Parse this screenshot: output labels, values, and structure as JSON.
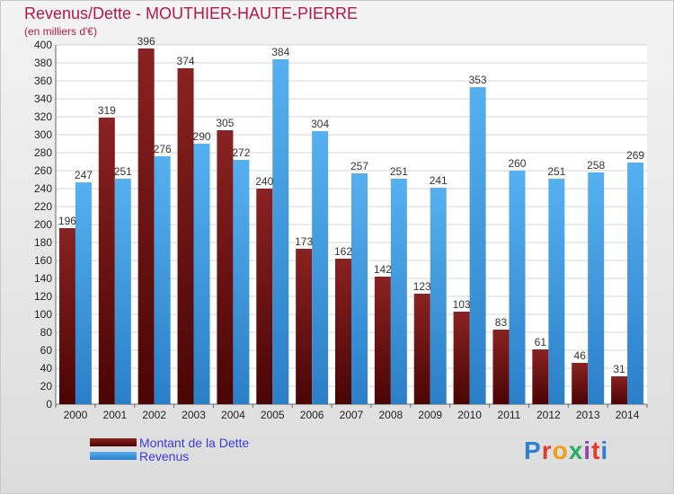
{
  "title": "Revenus/Dette - MOUTHIER-HAUTE-PIERRE",
  "subtitle": "(en milliers d'€)",
  "logo": "Proxiti",
  "colors": {
    "debt": "#7a1515",
    "debt_dark": "#4a0505",
    "revenue": "#4ea6e8",
    "revenue_dark": "#2b7fc7",
    "title": "#b0184a",
    "legend_text": "#3a3ad8"
  },
  "legend": {
    "debt_label": "Montant de la Dette",
    "revenue_label": "Revenus"
  },
  "chart_data": {
    "type": "bar",
    "categories": [
      "2000",
      "2001",
      "2002",
      "2003",
      "2004",
      "2005",
      "2006",
      "2007",
      "2008",
      "2009",
      "2010",
      "2011",
      "2012",
      "2013",
      "2014"
    ],
    "series": [
      {
        "name": "Montant de la Dette",
        "values": [
          196,
          319,
          396,
          374,
          305,
          240,
          173,
          162,
          142,
          123,
          103,
          83,
          61,
          46,
          31
        ]
      },
      {
        "name": "Revenus",
        "values": [
          247,
          251,
          276,
          290,
          272,
          384,
          304,
          257,
          251,
          241,
          353,
          260,
          251,
          258,
          269
        ]
      }
    ],
    "ylim": [
      0,
      400
    ],
    "ytick_step": 20,
    "grid": true,
    "legend_position": "bottom-left"
  }
}
